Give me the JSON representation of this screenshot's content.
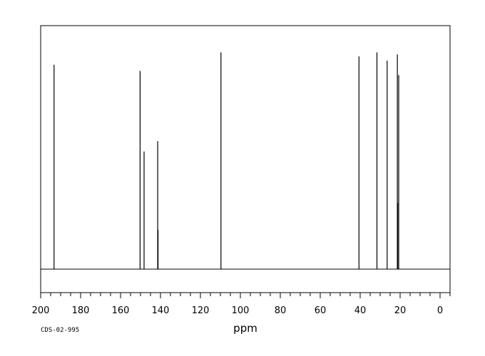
{
  "chart_data": {
    "type": "line",
    "title": "",
    "xlabel": "ppm",
    "ylabel": "",
    "sample_code": "CDS-02-995",
    "xlim": [
      200,
      -5
    ],
    "x_reversed": true,
    "grid": false,
    "tick_labels": [
      "200",
      "180",
      "160",
      "140",
      "120",
      "100",
      "80",
      "60",
      "40",
      "20",
      "0"
    ],
    "tick_values": [
      200,
      180,
      160,
      140,
      120,
      100,
      80,
      60,
      40,
      20,
      0
    ],
    "minor_step": 5,
    "peaks": [
      {
        "ppm": 193.3,
        "intensity": 0.99
      },
      {
        "ppm": 150.2,
        "intensity": 0.96
      },
      {
        "ppm": 148.2,
        "intensity": 0.57
      },
      {
        "ppm": 141.4,
        "intensity": 0.62
      },
      {
        "ppm": 141.2,
        "intensity": 0.19
      },
      {
        "ppm": 109.7,
        "intensity": 1.05
      },
      {
        "ppm": 40.6,
        "intensity": 1.03
      },
      {
        "ppm": 31.6,
        "intensity": 1.05
      },
      {
        "ppm": 26.5,
        "intensity": 1.01
      },
      {
        "ppm": 21.4,
        "intensity": 1.04
      },
      {
        "ppm": 20.7,
        "intensity": 0.94
      },
      {
        "ppm": 21.2,
        "intensity": 0.32
      }
    ]
  }
}
